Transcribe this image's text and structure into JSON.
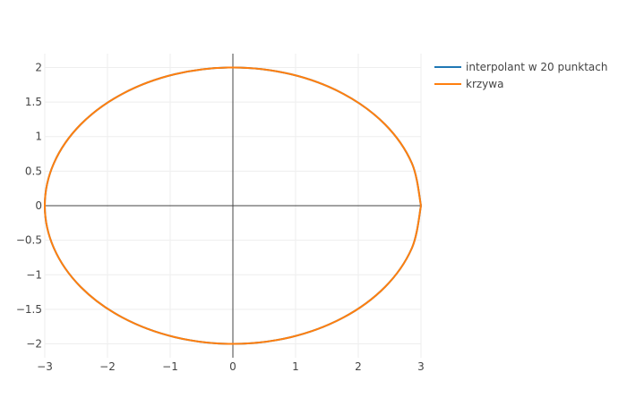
{
  "chart_data": {
    "type": "line",
    "title": "",
    "xlabel": "",
    "ylabel": "",
    "xlim": [
      -3,
      3
    ],
    "ylim": [
      -2.2,
      2.2
    ],
    "x_ticks": [
      -3,
      -2,
      -1,
      0,
      1,
      2,
      3
    ],
    "x_tick_labels": [
      "−3",
      "−2",
      "−1",
      "0",
      "1",
      "2",
      "3"
    ],
    "y_ticks": [
      -2,
      -1.5,
      -1,
      -0.5,
      0,
      0.5,
      1,
      1.5,
      2
    ],
    "y_tick_labels": [
      "−2",
      "−1.5",
      "−1",
      "−0.5",
      "0",
      "0.5",
      "1",
      "1.5",
      "2"
    ],
    "grid": true,
    "zero_lines": true,
    "legend_position": "top-right",
    "series": [
      {
        "name": "interpolant w 20 punktach",
        "color": "#1f77b4",
        "x": [
          3,
          2.853,
          2.427,
          1.763,
          0.927,
          0,
          -0.927,
          -1.763,
          -2.427,
          -2.853,
          -3,
          -2.853,
          -2.427,
          -1.763,
          -0.927,
          0,
          0.927,
          1.763,
          2.427,
          2.853,
          3
        ],
        "y": [
          0,
          0.618,
          1.176,
          1.618,
          1.902,
          2,
          1.902,
          1.618,
          1.176,
          0.618,
          0,
          -0.618,
          -1.176,
          -1.618,
          -1.902,
          -2,
          -1.902,
          -1.618,
          -1.176,
          -0.618,
          0
        ]
      },
      {
        "name": "krzywa",
        "color": "#ff7f0e",
        "x": [
          3,
          2.853,
          2.427,
          1.763,
          0.927,
          0,
          -0.927,
          -1.763,
          -2.427,
          -2.853,
          -3,
          -2.853,
          -2.427,
          -1.763,
          -0.927,
          0,
          0.927,
          1.763,
          2.427,
          2.853,
          3
        ],
        "y": [
          0,
          0.618,
          1.176,
          1.618,
          1.902,
          2,
          1.902,
          1.618,
          1.176,
          0.618,
          0,
          -0.618,
          -1.176,
          -1.618,
          -1.902,
          -2,
          -1.902,
          -1.618,
          -1.176,
          -0.618,
          0
        ]
      }
    ]
  }
}
